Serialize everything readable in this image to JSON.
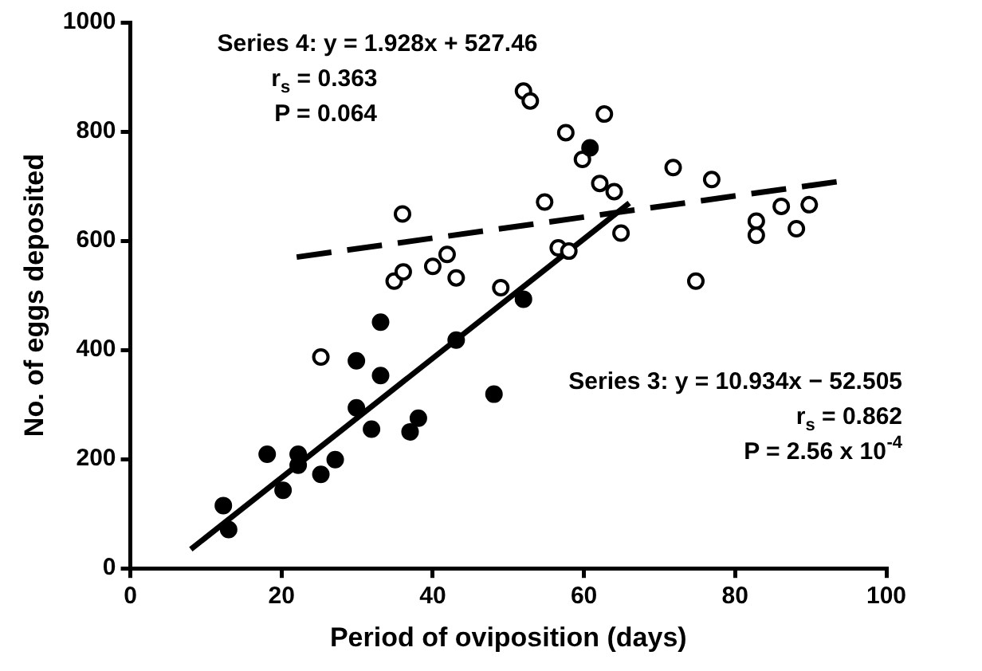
{
  "chart_data": {
    "type": "scatter",
    "xlabel": "Period of oviposition (days)",
    "ylabel": "No. of eggs deposited",
    "xlim": [
      0,
      100
    ],
    "xticks": [
      0,
      20,
      40,
      60,
      80,
      100
    ],
    "ylim": [
      0,
      1000
    ],
    "yticks": [
      0,
      200,
      400,
      600,
      800,
      1000
    ],
    "grid": false,
    "legend": false,
    "series": [
      {
        "color": "#000000",
        "marker": "circle",
        "x": [
          12.3,
          13,
          18.1,
          20.2,
          22.2,
          22.2,
          25.2,
          27.1,
          29.9,
          29.9,
          31.9,
          33.1,
          33.1,
          37,
          38.1,
          43.1,
          48.1,
          52,
          60.8
        ],
        "values": [
          115,
          71,
          209,
          143,
          209,
          189,
          172,
          199,
          294,
          380,
          255,
          353,
          451,
          250,
          275,
          418,
          319,
          493,
          770
        ]
      },
      {
        "color": "#ffffff",
        "marker": "circle",
        "x": [
          25.2,
          34.9,
          36.1,
          36,
          40,
          41.9,
          43.1,
          49,
          52,
          52.9,
          54.8,
          57.6,
          56.6,
          58,
          59.8,
          62.7,
          62.1,
          64,
          64.9,
          71.8,
          76.9,
          74.8,
          82.8,
          82.8,
          86.1,
          88.1,
          89.8
        ],
        "values": [
          387,
          526,
          543,
          649,
          553,
          575,
          532,
          514,
          874,
          856,
          671,
          798,
          587,
          581,
          749,
          832,
          705,
          690,
          614,
          734,
          712,
          526,
          636,
          610,
          663,
          622,
          666
        ]
      },
      {
        "type": "line",
        "color": "#000000",
        "line_style": "solid",
        "x": [
          8,
          66
        ],
        "values": [
          35,
          669
        ]
      },
      {
        "type": "line",
        "color": "#000000",
        "line_style": "dashed",
        "x": [
          22,
          94
        ],
        "values": [
          570,
          709
        ]
      }
    ],
    "annotations": [
      "Series 4: y = 1.928x + 527.46",
      "r$_{s}$ = 0.363",
      "P = 0.064",
      "Series 3: y = 10.934x − 52.505",
      "r$_{s}$ = 0.862",
      "P = 2.56 x 10$^{-4}$"
    ]
  }
}
